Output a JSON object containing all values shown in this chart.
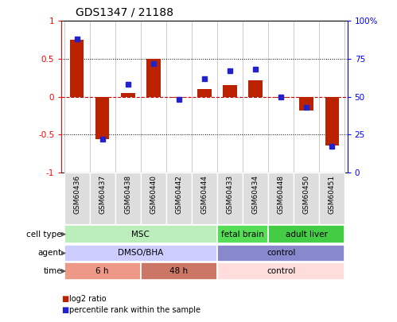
{
  "title": "GDS1347 / 21188",
  "samples": [
    "GSM60436",
    "GSM60437",
    "GSM60438",
    "GSM60440",
    "GSM60442",
    "GSM60444",
    "GSM60433",
    "GSM60434",
    "GSM60448",
    "GSM60450",
    "GSM60451"
  ],
  "log2_ratio": [
    0.75,
    -0.56,
    0.05,
    0.5,
    -0.02,
    0.1,
    0.15,
    0.22,
    -0.02,
    -0.18,
    -0.65
  ],
  "percentile_rank": [
    88,
    22,
    58,
    72,
    48,
    62,
    67,
    68,
    50,
    43,
    17
  ],
  "bar_color": "#BB2200",
  "dot_color": "#2222CC",
  "ylim_left": [
    -1,
    1
  ],
  "ylim_right": [
    0,
    100
  ],
  "yticks_left": [
    -1,
    -0.5,
    0,
    0.5,
    1
  ],
  "ytick_labels_left": [
    "-1",
    "-0.5",
    "0",
    "0.5",
    "1"
  ],
  "yticks_right": [
    0,
    25,
    50,
    75,
    100
  ],
  "ytick_labels_right": [
    "0",
    "25",
    "50",
    "75",
    "100%"
  ],
  "hline_color": "#CC0000",
  "dotted_lines": [
    -0.5,
    0.5
  ],
  "cell_type_groups": [
    {
      "label": "MSC",
      "start": 0,
      "end": 6,
      "color": "#BBEEBB"
    },
    {
      "label": "fetal brain",
      "start": 6,
      "end": 8,
      "color": "#55DD55"
    },
    {
      "label": "adult liver",
      "start": 8,
      "end": 11,
      "color": "#44CC44"
    }
  ],
  "agent_groups": [
    {
      "label": "DMSO/BHA",
      "start": 0,
      "end": 6,
      "color": "#CCCCFF"
    },
    {
      "label": "control",
      "start": 6,
      "end": 11,
      "color": "#8888CC"
    }
  ],
  "time_groups": [
    {
      "label": "6 h",
      "start": 0,
      "end": 3,
      "color": "#EE9988"
    },
    {
      "label": "48 h",
      "start": 3,
      "end": 6,
      "color": "#CC7766"
    },
    {
      "label": "control",
      "start": 6,
      "end": 11,
      "color": "#FFDDDD"
    }
  ],
  "row_labels": [
    "cell type",
    "agent",
    "time"
  ],
  "legend_items": [
    {
      "label": "log2 ratio",
      "color": "#BB2200"
    },
    {
      "label": "percentile rank within the sample",
      "color": "#2222CC"
    }
  ],
  "title_fontsize": 10,
  "bar_width": 0.55,
  "bg_color": "#FFFFFF"
}
